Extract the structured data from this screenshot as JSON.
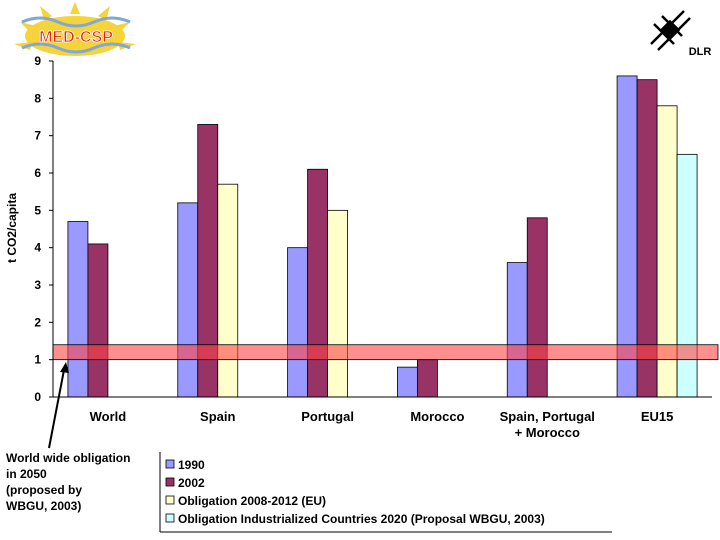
{
  "logos": {
    "left": {
      "text": "MED-CSP",
      "colors": {
        "sun": "#f5d33a",
        "waves": "#7fa8d8",
        "text": "#e0201b",
        "text_outline": "#ffffff"
      }
    },
    "right": {
      "text": "DLR"
    }
  },
  "chart_data": {
    "type": "bar",
    "title": "",
    "xlabel": "",
    "ylabel": "t CO2/capita",
    "ylim": [
      0,
      9
    ],
    "yticks": [
      0,
      1,
      2,
      3,
      4,
      5,
      6,
      7,
      8,
      9
    ],
    "categories": [
      [
        "World"
      ],
      [
        "Spain"
      ],
      [
        "Portugal"
      ],
      [
        "Morocco"
      ],
      [
        "Spain, Portugal",
        "+ Morocco"
      ],
      [
        "EU15"
      ]
    ],
    "series": [
      {
        "name": "1990",
        "color": "#9999ff",
        "values": [
          4.7,
          5.2,
          4.0,
          0.8,
          3.6,
          8.6
        ]
      },
      {
        "name": "2002",
        "color": "#993366",
        "values": [
          4.1,
          7.3,
          6.1,
          1.0,
          4.8,
          8.5
        ]
      },
      {
        "name": "Obligation 2008-2012 (EU)",
        "color": "#ffffcc",
        "values": [
          null,
          5.7,
          5.0,
          null,
          null,
          7.8
        ]
      },
      {
        "name": "Obligation Industrialized Countries 2020 (Proposal WBGU, 2003)",
        "color": "#ccffff",
        "values": [
          null,
          null,
          null,
          null,
          null,
          6.5
        ]
      }
    ],
    "reference_band": {
      "from": 1.0,
      "to": 1.4,
      "color": "#ff4444"
    },
    "annotation": {
      "lines": [
        "World wide obligation",
        "in 2050",
        "(proposed by",
        "WBGU, 2003)"
      ]
    },
    "legend_position": "bottom"
  }
}
